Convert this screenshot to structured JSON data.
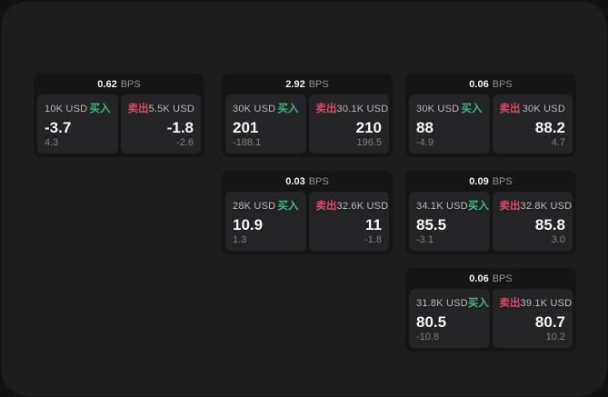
{
  "labels": {
    "bps_unit": "BPS",
    "buy": "买入",
    "sell": "卖出"
  },
  "colors": {
    "buy_green": "#3cb878",
    "sell_red": "#d9495f",
    "panel_bg": "#1d1d1e",
    "card_bg": "#161617",
    "subpanel_bg": "#242427"
  },
  "cards": [
    {
      "row": 1,
      "col": 1,
      "bps": "0.62",
      "buy": {
        "notional": "10K USD",
        "price": "-3.7",
        "delta": "4.3"
      },
      "sell": {
        "notional": "5.5K USD",
        "price": "-1.8",
        "delta": "-2.6"
      }
    },
    {
      "row": 1,
      "col": 2,
      "bps": "2.92",
      "buy": {
        "notional": "30K USD",
        "price": "201",
        "delta": "-188.1"
      },
      "sell": {
        "notional": "30.1K USD",
        "price": "210",
        "delta": "196.5"
      }
    },
    {
      "row": 1,
      "col": 3,
      "bps": "0.06",
      "buy": {
        "notional": "30K USD",
        "price": "88",
        "delta": "-4.9"
      },
      "sell": {
        "notional": "30K USD",
        "price": "88.2",
        "delta": "4.7"
      }
    },
    {
      "row": 2,
      "col": 2,
      "bps": "0.03",
      "buy": {
        "notional": "28K USD",
        "price": "10.9",
        "delta": "1.3"
      },
      "sell": {
        "notional": "32.6K USD",
        "price": "11",
        "delta": "-1.8"
      }
    },
    {
      "row": 2,
      "col": 3,
      "bps": "0.09",
      "buy": {
        "notional": "34.1K USD",
        "price": "85.5",
        "delta": "-3.1"
      },
      "sell": {
        "notional": "32.8K USD",
        "price": "85.8",
        "delta": "3.0"
      }
    },
    {
      "row": 3,
      "col": 3,
      "bps": "0.06",
      "buy": {
        "notional": "31.8K USD",
        "price": "80.5",
        "delta": "-10.8"
      },
      "sell": {
        "notional": "39.1K USD",
        "price": "80.7",
        "delta": "10.2"
      }
    }
  ]
}
